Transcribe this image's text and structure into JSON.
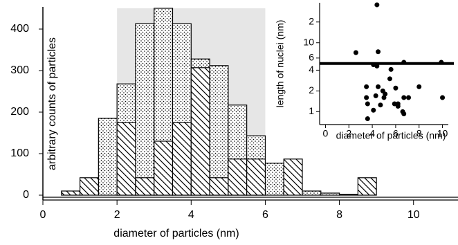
{
  "chart_data": [
    {
      "type": "histogram",
      "xlabel": "diameter of particles (nm)",
      "ylabel": "arbitrary counts of particles",
      "bins": [
        0.5,
        1,
        1.5,
        2,
        2.5,
        3,
        3.5,
        4,
        4.5,
        5,
        5.5,
        6,
        6.5,
        7,
        7.5,
        8,
        8.5,
        9
      ],
      "series": [
        {
          "pattern": "dots",
          "color": "#000000",
          "values": [
            null,
            null,
            185,
            268,
            413,
            450,
            413,
            328,
            312,
            217,
            143,
            77,
            null,
            10,
            5,
            2,
            null
          ]
        },
        {
          "pattern": "hatch",
          "color": "#000000",
          "values": [
            10,
            42,
            null,
            175,
            42,
            130,
            175,
            307,
            42,
            87,
            87,
            null,
            87,
            null,
            null,
            null,
            42
          ]
        }
      ],
      "highlight": [
        2,
        6
      ],
      "highlight_color": "#e6e6e6",
      "xlim": [
        0,
        11.2
      ],
      "xticks": [
        0,
        2,
        4,
        6,
        8,
        10
      ],
      "ylim": [
        0,
        450
      ],
      "yticks": [
        0,
        100,
        200,
        300,
        400
      ]
    },
    {
      "type": "scatter",
      "xlabel": "diameter of particles (nm)",
      "ylabel": "length of nuclei (nm)",
      "x": [
        4.4,
        2.6,
        4.5,
        4.1,
        4.4,
        5.6,
        6.7,
        9.9,
        3.5,
        4.5,
        4.9,
        5.1,
        5.0,
        4.3,
        6.0,
        6.7,
        7.1,
        8.0,
        10,
        3.6,
        5.9,
        6.2,
        6.2,
        6.6,
        4.1,
        4.7,
        6.7,
        3.6,
        5.5,
        3.5
      ],
      "y": [
        35.5,
        7.2,
        7.4,
        4.8,
        4.6,
        4.1,
        5.2,
        5.2,
        2.3,
        2.3,
        2.0,
        1.8,
        1.6,
        1.7,
        2.2,
        1.6,
        1.6,
        2.3,
        1.6,
        1.3,
        1.3,
        1.2,
        1.3,
        1.0,
        1.05,
        1.25,
        0.93,
        0.79,
        3.0,
        1.6
      ],
      "color": "#000000",
      "reference_line": 5,
      "ylog": true,
      "xlim": [
        -0.5,
        10.5
      ],
      "xticks": [
        0,
        2,
        4,
        6,
        8,
        10
      ],
      "ylim": [
        0.65,
        38
      ],
      "yticks": [
        1,
        2,
        4,
        6,
        10,
        {
          "value": 20,
          "label": "2"
        }
      ]
    }
  ]
}
